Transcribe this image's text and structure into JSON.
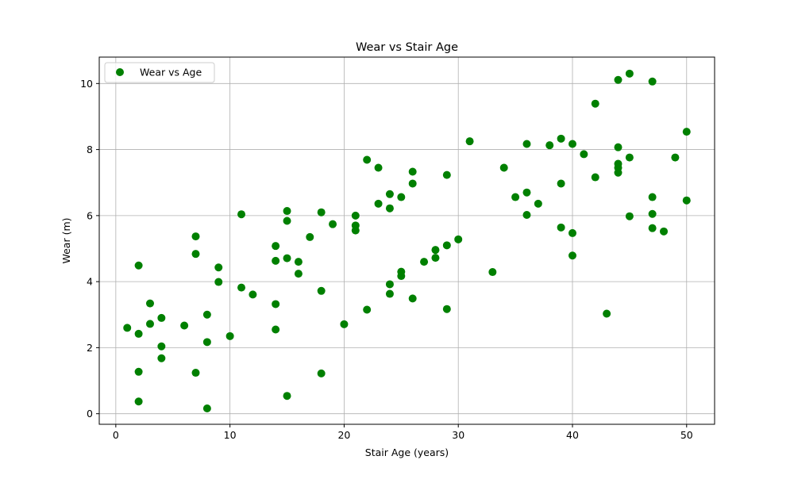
{
  "chart_data": {
    "type": "scatter",
    "title": "Wear vs Stair Age",
    "xlabel": "Stair Age (years)",
    "ylabel": "Wear (m)",
    "xlim": [
      -1.45,
      52.45
    ],
    "ylim": [
      -0.32,
      10.8
    ],
    "xticks": [
      0,
      10,
      20,
      30,
      40,
      50
    ],
    "yticks": [
      0,
      2,
      4,
      6,
      8,
      10
    ],
    "grid": true,
    "legend_position": "top-left",
    "series": [
      {
        "name": "Wear vs Age",
        "color": "#008000",
        "marker": "circle",
        "points": [
          [
            1,
            2.6
          ],
          [
            2,
            2.42
          ],
          [
            2,
            4.49
          ],
          [
            2,
            1.27
          ],
          [
            2,
            0.37
          ],
          [
            3,
            3.34
          ],
          [
            3,
            2.72
          ],
          [
            4,
            2.9
          ],
          [
            4,
            2.04
          ],
          [
            4,
            1.68
          ],
          [
            6,
            2.67
          ],
          [
            7,
            5.37
          ],
          [
            7,
            4.84
          ],
          [
            7,
            1.24
          ],
          [
            8,
            3.0
          ],
          [
            8,
            2.17
          ],
          [
            8,
            0.16
          ],
          [
            9,
            4.43
          ],
          [
            9,
            3.99
          ],
          [
            10,
            2.35
          ],
          [
            11,
            6.04
          ],
          [
            11,
            3.82
          ],
          [
            12,
            3.61
          ],
          [
            14,
            5.08
          ],
          [
            14,
            4.63
          ],
          [
            14,
            3.32
          ],
          [
            14,
            2.55
          ],
          [
            15,
            6.14
          ],
          [
            15,
            5.84
          ],
          [
            15,
            4.71
          ],
          [
            15,
            0.54
          ],
          [
            16,
            4.6
          ],
          [
            16,
            4.24
          ],
          [
            17,
            5.35
          ],
          [
            18,
            6.1
          ],
          [
            18,
            3.72
          ],
          [
            18,
            1.22
          ],
          [
            19,
            5.74
          ],
          [
            20,
            2.71
          ],
          [
            21,
            6.0
          ],
          [
            21,
            5.7
          ],
          [
            21,
            5.55
          ],
          [
            22,
            7.69
          ],
          [
            22,
            3.15
          ],
          [
            23,
            7.45
          ],
          [
            23,
            6.36
          ],
          [
            24,
            6.65
          ],
          [
            24,
            6.22
          ],
          [
            24,
            3.92
          ],
          [
            24,
            3.63
          ],
          [
            25,
            6.56
          ],
          [
            25,
            4.3
          ],
          [
            25,
            4.17
          ],
          [
            26,
            7.33
          ],
          [
            26,
            6.97
          ],
          [
            26,
            3.49
          ],
          [
            27,
            4.6
          ],
          [
            28,
            4.96
          ],
          [
            28,
            4.72
          ],
          [
            29,
            7.23
          ],
          [
            29,
            5.1
          ],
          [
            29,
            3.17
          ],
          [
            30,
            5.28
          ],
          [
            31,
            8.25
          ],
          [
            33,
            4.29
          ],
          [
            34,
            7.45
          ],
          [
            35,
            6.56
          ],
          [
            36,
            8.17
          ],
          [
            36,
            6.7
          ],
          [
            36,
            6.02
          ],
          [
            37,
            6.36
          ],
          [
            38,
            8.13
          ],
          [
            39,
            8.33
          ],
          [
            39,
            6.97
          ],
          [
            39,
            5.64
          ],
          [
            40,
            8.17
          ],
          [
            40,
            5.47
          ],
          [
            40,
            4.79
          ],
          [
            41,
            7.86
          ],
          [
            42,
            9.39
          ],
          [
            42,
            7.16
          ],
          [
            43,
            3.03
          ],
          [
            44,
            10.11
          ],
          [
            44,
            8.07
          ],
          [
            44,
            7.57
          ],
          [
            44,
            7.45
          ],
          [
            44,
            7.3
          ],
          [
            45,
            10.3
          ],
          [
            45,
            7.76
          ],
          [
            45,
            5.98
          ],
          [
            47,
            10.06
          ],
          [
            47,
            6.56
          ],
          [
            47,
            6.05
          ],
          [
            47,
            5.62
          ],
          [
            48,
            5.52
          ],
          [
            49,
            7.76
          ],
          [
            50,
            8.54
          ],
          [
            50,
            6.46
          ]
        ]
      }
    ]
  }
}
